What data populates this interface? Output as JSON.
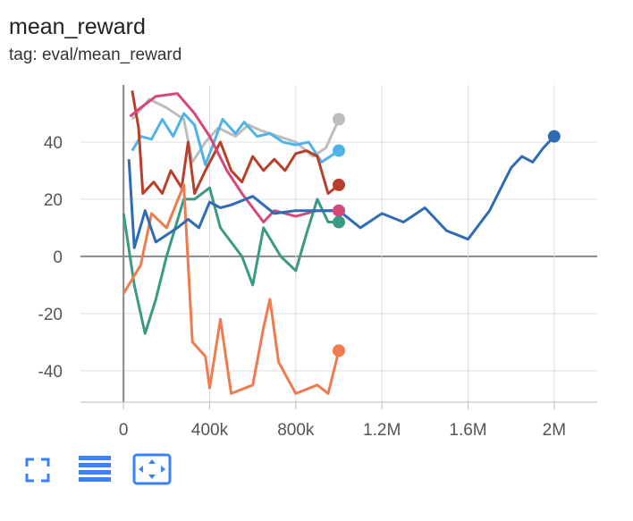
{
  "chart_data": {
    "type": "line",
    "title": "mean_reward",
    "subtitle": "tag: eval/mean_reward",
    "xlim": [
      -200000,
      2200000
    ],
    "ylim": [
      -51,
      60
    ],
    "grid": true,
    "xticks": [
      {
        "value": 0,
        "label": "0"
      },
      {
        "value": 400000,
        "label": "400k"
      },
      {
        "value": 800000,
        "label": "800k"
      },
      {
        "value": 1200000,
        "label": "1.2M"
      },
      {
        "value": 1600000,
        "label": "1.6M"
      },
      {
        "value": 2000000,
        "label": "2M"
      }
    ],
    "yticks": [
      -40,
      -20,
      0,
      20,
      40
    ],
    "series": [
      {
        "color": "#bdbdbd",
        "x": [
          40000,
          120000,
          200000,
          280000,
          320000,
          380000,
          440000,
          520000,
          580000,
          640000,
          720000,
          800000,
          880000,
          940000,
          1000000
        ],
        "values": [
          48,
          55,
          52,
          48,
          33,
          40,
          45,
          42,
          46,
          44,
          42,
          40,
          35,
          38,
          48
        ]
      },
      {
        "color": "#4fb3e8",
        "x": [
          40000,
          80000,
          130000,
          180000,
          230000,
          280000,
          330000,
          380000,
          420000,
          460000,
          520000,
          560000,
          620000,
          680000,
          740000,
          800000,
          860000,
          920000,
          1000000
        ],
        "values": [
          37,
          42,
          41,
          48,
          42,
          50,
          46,
          32,
          40,
          48,
          43,
          47,
          42,
          43,
          40,
          39,
          40,
          33,
          37
        ]
      },
      {
        "color": "#b8402a",
        "x": [
          40000,
          70000,
          90000,
          140000,
          180000,
          220000,
          270000,
          300000,
          330000,
          380000,
          450000,
          500000,
          550000,
          600000,
          650000,
          700000,
          750000,
          800000,
          850000,
          900000,
          950000,
          1000000
        ],
        "values": [
          58,
          45,
          22,
          26,
          22,
          30,
          24,
          40,
          22,
          30,
          40,
          30,
          26,
          35,
          30,
          34,
          30,
          36,
          37,
          35,
          22,
          25
        ]
      },
      {
        "color": "#d6477a",
        "x": [
          30000,
          80000,
          150000,
          250000,
          330000,
          400000,
          480000,
          550000,
          620000,
          650000,
          700000,
          800000,
          900000,
          1000000
        ],
        "values": [
          49,
          52,
          56,
          57,
          50,
          42,
          30,
          22,
          15,
          12,
          16,
          14,
          16,
          16
        ]
      },
      {
        "color": "#3a9a83",
        "x": [
          0,
          50000,
          100000,
          150000,
          200000,
          280000,
          330000,
          400000,
          450000,
          550000,
          600000,
          650000,
          730000,
          800000,
          850000,
          900000,
          950000,
          1000000
        ],
        "values": [
          15,
          -10,
          -27,
          -15,
          0,
          20,
          20,
          24,
          10,
          0,
          -10,
          10,
          0,
          -5,
          8,
          20,
          12,
          12
        ]
      },
      {
        "color": "#ef7b4f",
        "x": [
          0,
          80000,
          130000,
          200000,
          280000,
          320000,
          380000,
          400000,
          450000,
          500000,
          600000,
          650000,
          680000,
          720000,
          800000,
          900000,
          950000,
          1000000
        ],
        "values": [
          -13,
          -3,
          15,
          10,
          25,
          -30,
          -35,
          -46,
          -22,
          -48,
          -45,
          -25,
          -15,
          -37,
          -48,
          -45,
          -48,
          -33
        ]
      },
      {
        "color": "#2e6db4",
        "x": [
          25000,
          50000,
          100000,
          150000,
          250000,
          300000,
          350000,
          400000,
          450000,
          500000,
          600000,
          700000,
          800000,
          900000,
          1000000,
          1100000,
          1200000,
          1300000,
          1400000,
          1500000,
          1600000,
          1700000,
          1800000,
          1850000,
          1900000,
          1950000,
          2000000
        ],
        "values": [
          34,
          3,
          16,
          5,
          10,
          13,
          10,
          19,
          17,
          18,
          21,
          15,
          16,
          16,
          16,
          10,
          15,
          12,
          17,
          9,
          6,
          16,
          31,
          35,
          33,
          38,
          42
        ]
      }
    ]
  }
}
